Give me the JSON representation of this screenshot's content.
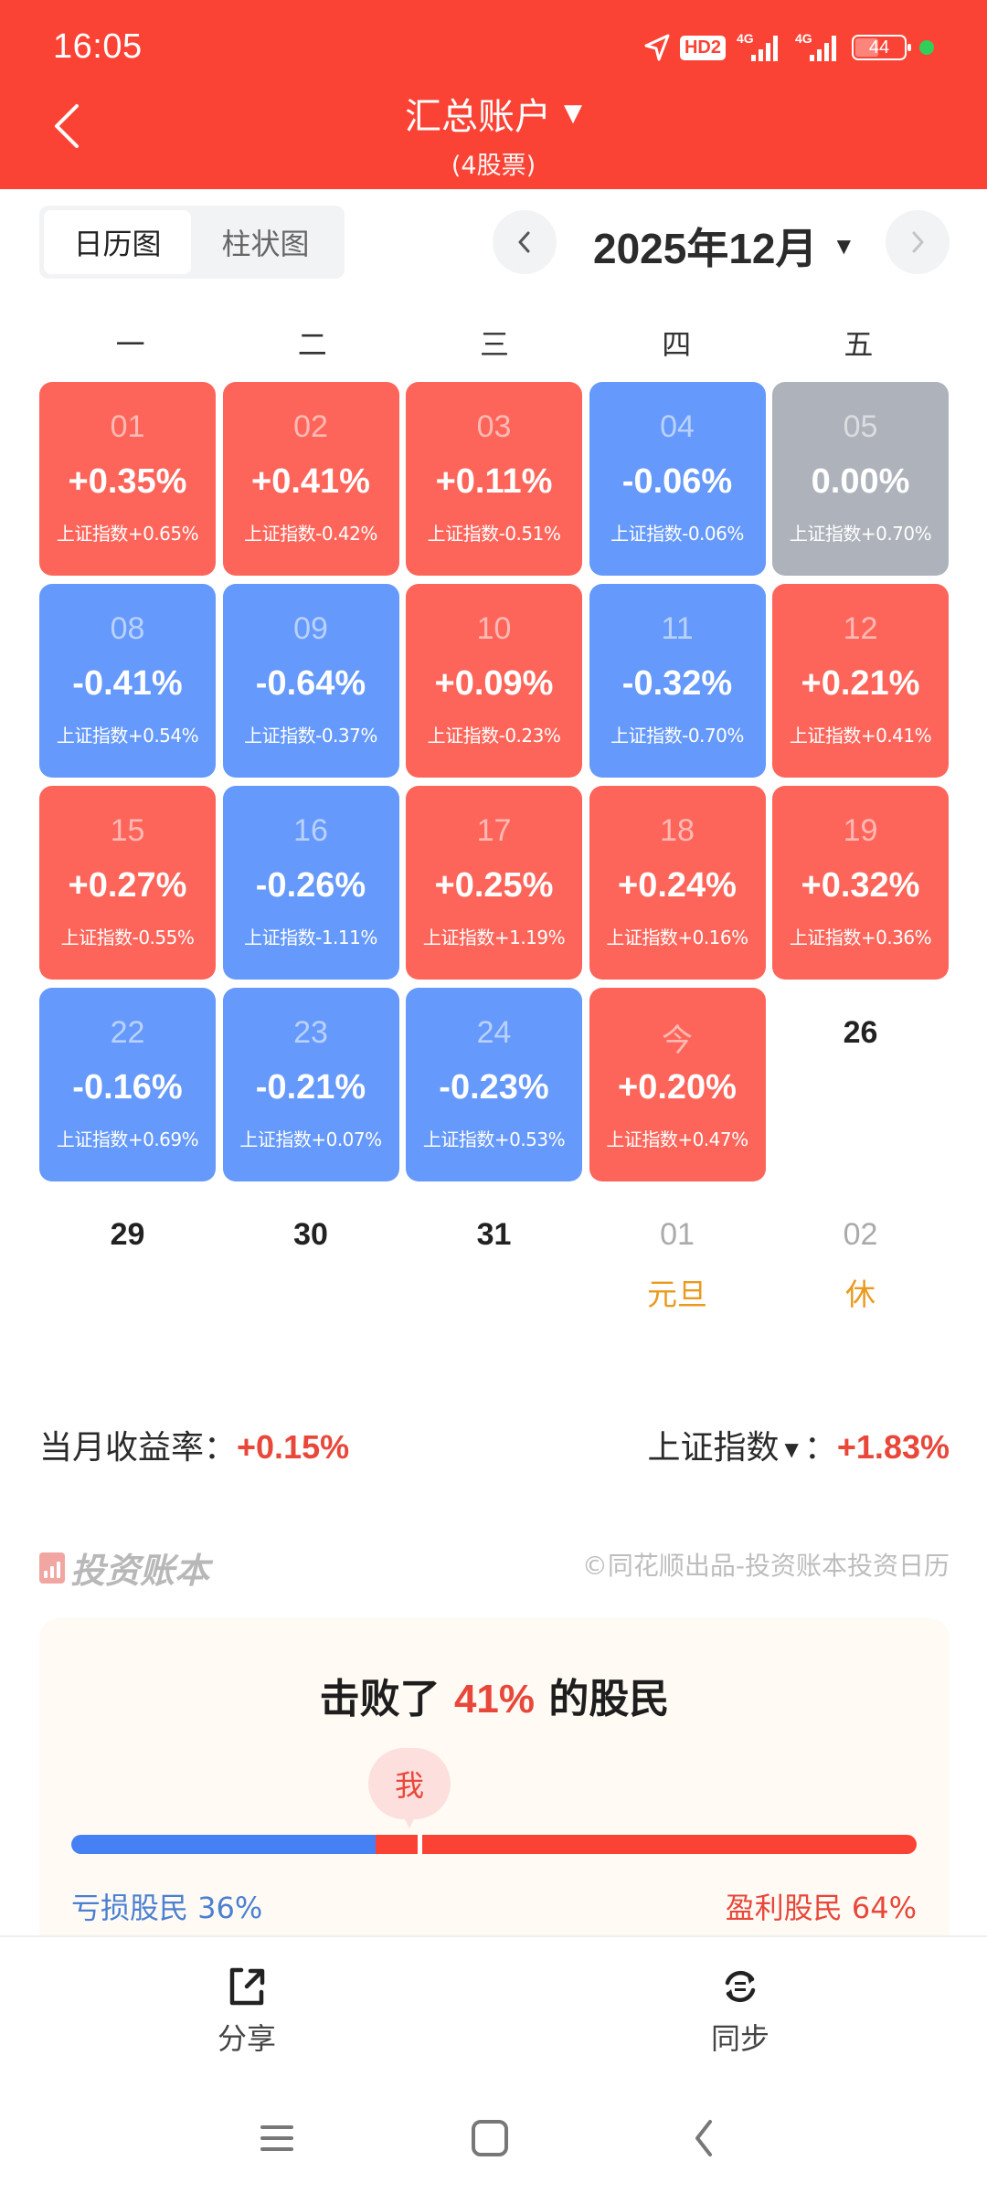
{
  "status_bar": {
    "time": "16:05",
    "network_badge": "HD2",
    "sim1": "4G",
    "sim2": "4G",
    "battery": "44"
  },
  "header": {
    "title": "汇总账户",
    "subtitle": "(4股票)",
    "title_caret": "▼"
  },
  "view_tabs": [
    {
      "label": "日历图",
      "active": true
    },
    {
      "label": "柱状图",
      "active": false
    }
  ],
  "month_nav": {
    "label": "2025年12月",
    "caret": "▼"
  },
  "weekdays": [
    "一",
    "二",
    "三",
    "四",
    "五"
  ],
  "calendar": [
    {
      "day": "01",
      "return": "+0.35%",
      "index": "上证指数+0.65%",
      "state": "up"
    },
    {
      "day": "02",
      "return": "+0.41%",
      "index": "上证指数-0.42%",
      "state": "up"
    },
    {
      "day": "03",
      "return": "+0.11%",
      "index": "上证指数-0.51%",
      "state": "up"
    },
    {
      "day": "04",
      "return": "-0.06%",
      "index": "上证指数-0.06%",
      "state": "down"
    },
    {
      "day": "05",
      "return": "0.00%",
      "index": "上证指数+0.70%",
      "state": "flat"
    },
    {
      "day": "08",
      "return": "-0.41%",
      "index": "上证指数+0.54%",
      "state": "down"
    },
    {
      "day": "09",
      "return": "-0.64%",
      "index": "上证指数-0.37%",
      "state": "down"
    },
    {
      "day": "10",
      "return": "+0.09%",
      "index": "上证指数-0.23%",
      "state": "up"
    },
    {
      "day": "11",
      "return": "-0.32%",
      "index": "上证指数-0.70%",
      "state": "down"
    },
    {
      "day": "12",
      "return": "+0.21%",
      "index": "上证指数+0.41%",
      "state": "up"
    },
    {
      "day": "15",
      "return": "+0.27%",
      "index": "上证指数-0.55%",
      "state": "up"
    },
    {
      "day": "16",
      "return": "-0.26%",
      "index": "上证指数-1.11%",
      "state": "down"
    },
    {
      "day": "17",
      "return": "+0.25%",
      "index": "上证指数+1.19%",
      "state": "up"
    },
    {
      "day": "18",
      "return": "+0.24%",
      "index": "上证指数+0.16%",
      "state": "up"
    },
    {
      "day": "19",
      "return": "+0.32%",
      "index": "上证指数+0.36%",
      "state": "up"
    },
    {
      "day": "22",
      "return": "-0.16%",
      "index": "上证指数+0.69%",
      "state": "down"
    },
    {
      "day": "23",
      "return": "-0.21%",
      "index": "上证指数+0.07%",
      "state": "down"
    },
    {
      "day": "24",
      "return": "-0.23%",
      "index": "上证指数+0.53%",
      "state": "down"
    },
    {
      "day": "今",
      "return": "+0.20%",
      "index": "上证指数+0.47%",
      "state": "up"
    },
    {
      "day": "26",
      "return": "",
      "index": "",
      "state": "empty"
    },
    {
      "day": "29",
      "return": "",
      "index": "",
      "state": "empty"
    },
    {
      "day": "30",
      "return": "",
      "index": "",
      "state": "empty"
    },
    {
      "day": "31",
      "return": "",
      "index": "",
      "state": "empty"
    },
    {
      "day": "01",
      "return": "",
      "index": "",
      "state": "next-month",
      "holiday": "元旦"
    },
    {
      "day": "02",
      "return": "",
      "index": "",
      "state": "next-month",
      "holiday": "休"
    }
  ],
  "summary": {
    "monthly_label": "当月收益率：",
    "monthly_value": "+0.15%",
    "index_label": "上证指数",
    "index_caret": "▼",
    "index_colon": "：",
    "index_value": "+1.83%"
  },
  "brand": {
    "name": "投资账本",
    "copyright": "©同花顺出品-投资账本投资日历"
  },
  "ranking": {
    "prefix": "击败了",
    "percent": "41%",
    "suffix": "的股民",
    "me_label": "我",
    "loss_label": "亏损股民 36%",
    "gain_label": "盈利股民 64%",
    "loss_pct": 36,
    "me_pct": 41
  },
  "actions": {
    "share": "分享",
    "sync": "同步"
  },
  "colors": {
    "header": "#fb4335",
    "up": "#fe655a",
    "down": "#6599fb",
    "flat": "#adb2bb",
    "holiday": "#ea9a1e",
    "accent_red": "#e8473a",
    "loss_blue": "#4580f5"
  }
}
